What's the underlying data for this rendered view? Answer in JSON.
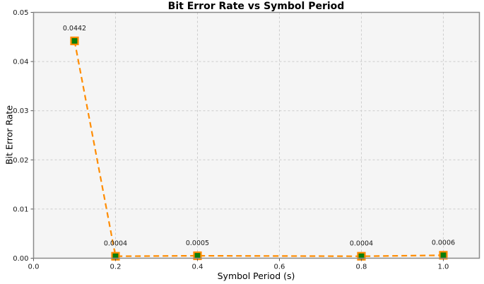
{
  "chart_data": {
    "type": "line",
    "title": "Bit Error Rate vs Symbol Period",
    "xlabel": "Symbol Period (s)",
    "ylabel": "Bit Error Rate",
    "x": [
      0.1,
      0.2,
      0.4,
      0.8,
      1.0
    ],
    "y": [
      0.0442,
      0.0004,
      0.0005,
      0.0004,
      0.0006
    ],
    "point_labels": [
      "0.0442",
      "0.0004",
      "0.0005",
      "0.0004",
      "0.0006"
    ],
    "xlim": [
      0,
      1.088
    ],
    "ylim": [
      0,
      0.05
    ],
    "xticks": [
      0,
      0.2,
      0.4,
      0.6,
      0.8,
      1.0
    ],
    "xtick_labels": [
      "0.0",
      "0.2",
      "0.4",
      "0.6",
      "0.8",
      "1.0"
    ],
    "yticks": [
      0,
      0.01,
      0.02,
      0.03,
      0.04,
      0.05
    ],
    "ytick_labels": [
      "0.00",
      "0.01",
      "0.02",
      "0.03",
      "0.04",
      "0.05"
    ],
    "grid": true,
    "legend": null,
    "style": {
      "line_color": "#ff8c00",
      "line_dash": "dashed",
      "marker": "square",
      "marker_fill": "#0a7e0a",
      "marker_edge": "#ff8c00",
      "plot_bg": "#f5f5f5",
      "figure_bg": "#ffffff",
      "grid_color": "#cccccc",
      "spine_color": "#8a8a8a",
      "tick_color": "#555555",
      "text_color": "#1a1a1a"
    }
  }
}
